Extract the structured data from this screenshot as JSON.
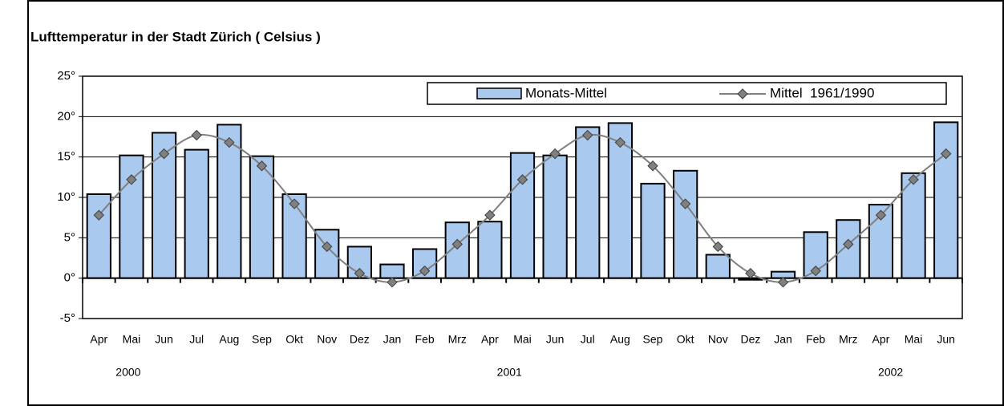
{
  "chart_data": {
    "type": "bar-line",
    "title": "Lufttemperatur in der Stadt Zürich  ( Celsius )",
    "categories": [
      "Apr",
      "Mai",
      "Jun",
      "Jul",
      "Aug",
      "Sep",
      "Okt",
      "Nov",
      "Dez",
      "Jan",
      "Feb",
      "Mrz",
      "Apr",
      "Mai",
      "Jun",
      "Jul",
      "Aug",
      "Sep",
      "Okt",
      "Nov",
      "Dez",
      "Jan",
      "Feb",
      "Mrz",
      "Apr",
      "Mai",
      "Jun"
    ],
    "year_labels": [
      "2000",
      "2001",
      "2002"
    ],
    "series": [
      {
        "name": "Monats-Mittel",
        "type": "bar",
        "color": "#a9c9ef",
        "values": [
          10.4,
          15.2,
          18,
          15.9,
          19,
          15.1,
          10.4,
          6,
          3.9,
          1.7,
          3.6,
          6.9,
          7,
          15.5,
          15.2,
          18.7,
          19.2,
          11.7,
          13.3,
          2.9,
          -0.2,
          0.8,
          5.7,
          7.2,
          9.1,
          13,
          19.3
        ]
      },
      {
        "name": "Mittel  1961/1990",
        "type": "line",
        "color": "#808080",
        "values": [
          7.8,
          12.2,
          15.4,
          17.7,
          16.8,
          13.9,
          9.2,
          3.9,
          0.6,
          -0.5,
          0.9,
          4.2,
          7.8,
          12.2,
          15.4,
          17.7,
          16.8,
          13.9,
          9.2,
          3.9,
          0.6,
          -0.5,
          0.9,
          4.2,
          7.8,
          12.2,
          15.4
        ]
      }
    ],
    "ylim": [
      -5,
      25
    ],
    "yticks": [
      {
        "value": -5,
        "label": "-5°"
      },
      {
        "value": 0,
        "label": "0°"
      },
      {
        "value": 5,
        "label": "5°"
      },
      {
        "value": 10,
        "label": "10°"
      },
      {
        "value": 15,
        "label": "15°"
      },
      {
        "value": 20,
        "label": "20°"
      },
      {
        "value": 25,
        "label": "25°"
      }
    ],
    "grid": true,
    "legend": "top-right"
  }
}
